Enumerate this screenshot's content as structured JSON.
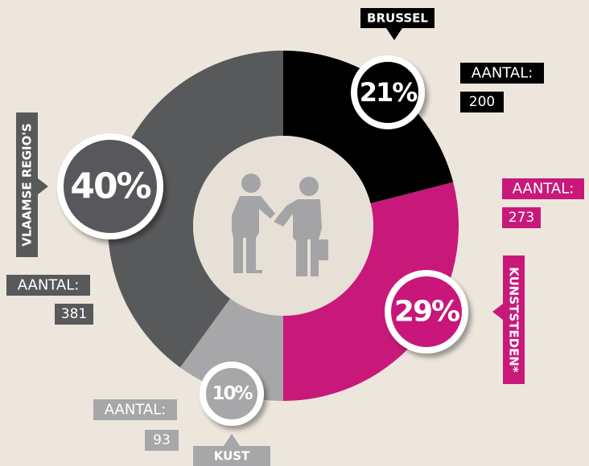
{
  "chart_data": {
    "type": "donut",
    "categories": [
      "BRUSSEL",
      "KUNSTSTEDEN*",
      "KUST",
      "VLAAMSE REGIO'S"
    ],
    "values": [
      21,
      29,
      10,
      40
    ],
    "value_labels": [
      "21%",
      "29%",
      "10%",
      "40%"
    ],
    "count_label": "AANTAL:",
    "counts": [
      200,
      273,
      93,
      381
    ],
    "colors": [
      "#000000",
      "#c8197a",
      "#a7a7a9",
      "#58595b"
    ]
  }
}
